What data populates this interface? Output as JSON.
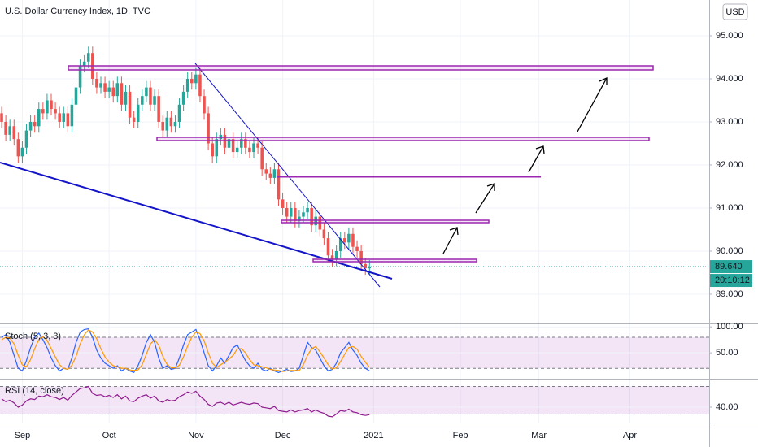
{
  "chart_data": [
    {
      "type": "candlestick",
      "title": "U.S. Dollar Currency Index, 1D, TVC",
      "currency": "USD",
      "up_color": "#26a69a",
      "down_color": "#ef5350",
      "open": [
        93.2,
        93.0,
        92.7,
        92.9,
        92.6,
        92.2,
        92.4,
        92.8,
        93.0,
        92.9,
        93.3,
        93.2,
        93.5,
        93.3,
        93.2,
        93.0,
        93.2,
        92.9,
        93.4,
        93.8,
        94.3,
        94.4,
        94.6,
        94.0,
        93.8,
        93.9,
        93.7,
        93.8,
        93.6,
        93.9,
        93.4,
        93.7,
        93.1,
        93.0,
        93.4,
        93.6,
        93.8,
        93.4,
        93.6,
        93.0,
        92.8,
        93.1,
        92.9,
        93.0,
        93.4,
        93.7,
        94.0,
        93.9,
        94.1,
        93.6,
        93.2,
        92.5,
        92.2,
        92.6,
        92.7,
        92.4,
        92.6,
        92.3,
        92.4,
        92.6,
        92.4,
        92.3,
        92.5,
        92.4,
        91.9,
        91.8,
        91.7,
        91.9,
        91.2,
        91.0,
        90.8,
        91.0,
        90.7,
        90.8,
        90.9,
        91.0,
        90.6,
        90.8,
        90.5,
        90.3,
        89.9,
        89.8,
        90.0,
        90.3,
        90.2,
        90.4,
        90.1,
        90.0,
        89.7,
        89.6
      ],
      "high": [
        93.35,
        93.15,
        93.05,
        93.05,
        92.75,
        92.55,
        92.95,
        93.15,
        93.15,
        93.45,
        93.45,
        93.65,
        93.65,
        93.45,
        93.35,
        93.35,
        93.35,
        93.55,
        93.95,
        94.45,
        94.55,
        94.75,
        94.75,
        94.15,
        94.05,
        94.05,
        93.95,
        93.95,
        94.05,
        94.05,
        93.85,
        93.85,
        93.25,
        93.55,
        93.75,
        93.95,
        93.95,
        93.75,
        93.75,
        93.15,
        93.25,
        93.25,
        93.15,
        93.55,
        93.85,
        94.15,
        94.15,
        94.25,
        94.25,
        93.75,
        93.35,
        92.65,
        92.75,
        92.85,
        92.85,
        92.75,
        92.75,
        92.55,
        92.75,
        92.75,
        92.55,
        92.65,
        92.65,
        92.55,
        92.05,
        91.95,
        92.05,
        92.05,
        91.35,
        91.15,
        91.15,
        91.15,
        90.95,
        91.05,
        91.15,
        91.15,
        90.95,
        90.95,
        90.65,
        90.45,
        90.05,
        90.15,
        90.45,
        90.45,
        90.55,
        90.55,
        90.25,
        90.15,
        89.85,
        89.79
      ],
      "low": [
        92.85,
        92.55,
        92.55,
        92.45,
        92.05,
        92.05,
        92.25,
        92.65,
        92.75,
        92.75,
        93.05,
        93.05,
        93.15,
        93.05,
        92.85,
        92.85,
        92.75,
        92.75,
        93.25,
        93.65,
        94.15,
        94.25,
        93.85,
        93.65,
        93.65,
        93.55,
        93.55,
        93.45,
        93.45,
        93.25,
        93.25,
        92.95,
        92.85,
        92.85,
        93.25,
        93.45,
        93.25,
        93.25,
        92.85,
        92.65,
        92.65,
        92.75,
        92.75,
        92.85,
        93.25,
        93.55,
        93.75,
        93.75,
        93.45,
        93.05,
        92.35,
        92.05,
        92.05,
        92.45,
        92.25,
        92.25,
        92.15,
        92.15,
        92.25,
        92.25,
        92.15,
        92.15,
        92.25,
        91.75,
        91.65,
        91.55,
        91.55,
        91.05,
        90.85,
        90.65,
        90.65,
        90.55,
        90.55,
        90.65,
        90.75,
        90.45,
        90.45,
        90.35,
        90.15,
        89.75,
        89.65,
        89.65,
        89.85,
        90.05,
        90.05,
        89.95,
        89.85,
        89.55,
        89.45,
        89.45
      ],
      "close": [
        93.0,
        92.7,
        92.9,
        92.6,
        92.2,
        92.4,
        92.8,
        93.0,
        92.9,
        93.3,
        93.2,
        93.5,
        93.3,
        93.2,
        93.0,
        93.2,
        92.9,
        93.4,
        93.8,
        94.3,
        94.4,
        94.6,
        94.0,
        93.8,
        93.9,
        93.7,
        93.8,
        93.6,
        93.9,
        93.4,
        93.7,
        93.1,
        93.0,
        93.4,
        93.6,
        93.8,
        93.4,
        93.6,
        93.0,
        92.8,
        93.1,
        92.9,
        93.0,
        93.4,
        93.7,
        94.0,
        93.9,
        94.1,
        93.6,
        93.2,
        92.5,
        92.2,
        92.6,
        92.7,
        92.4,
        92.6,
        92.3,
        92.4,
        92.6,
        92.4,
        92.3,
        92.5,
        92.4,
        91.9,
        91.8,
        91.7,
        91.9,
        91.2,
        91.0,
        90.8,
        91.0,
        90.7,
        90.8,
        90.9,
        91.0,
        90.6,
        90.8,
        90.5,
        90.3,
        89.9,
        89.8,
        90.0,
        90.3,
        90.2,
        90.4,
        90.1,
        90.0,
        89.7,
        89.6,
        89.64
      ],
      "last_price": {
        "value": 89.64,
        "label": "89.640"
      },
      "countdown": "20:10:12",
      "xlim": [
        -0.4,
        171.2
      ],
      "xticks": [
        {
          "value": 5,
          "label": "Sep"
        },
        {
          "value": 26,
          "label": "Oct"
        },
        {
          "value": 47,
          "label": "Nov"
        },
        {
          "value": 68,
          "label": "Dec"
        },
        {
          "value": 90,
          "label": "2021"
        },
        {
          "value": 111,
          "label": "Feb"
        },
        {
          "value": 130,
          "label": "Mar"
        },
        {
          "value": 152,
          "label": "Apr"
        }
      ],
      "ylim": [
        88.32,
        95.83
      ],
      "yticks": [
        {
          "value": 95,
          "label": "95.000"
        },
        {
          "value": 94,
          "label": "94.000"
        },
        {
          "value": 93,
          "label": "93.000"
        },
        {
          "value": 92,
          "label": "92.000"
        },
        {
          "value": 91,
          "label": "91.000"
        },
        {
          "value": 90,
          "label": "90.000"
        },
        {
          "value": 89,
          "label": "89.000"
        }
      ]
    },
    {
      "type": "line",
      "title": "Stoch (5, 3, 3)",
      "ylim": [
        0,
        105
      ],
      "bands": [
        20,
        80
      ],
      "band_color": "#9c27b0",
      "yticks": [
        {
          "value": 100,
          "label": "100.00"
        },
        {
          "value": 50,
          "label": "50.00"
        }
      ],
      "series": [
        {
          "color": "#2962ff",
          "values": [
            80,
            85,
            70,
            45,
            20,
            15,
            35,
            60,
            80,
            88,
            75,
            60,
            40,
            25,
            15,
            20,
            18,
            40,
            70,
            90,
            95,
            96,
            80,
            55,
            40,
            30,
            25,
            20,
            25,
            15,
            20,
            15,
            12,
            25,
            45,
            70,
            85,
            70,
            40,
            20,
            25,
            18,
            20,
            40,
            65,
            85,
            90,
            95,
            75,
            50,
            25,
            15,
            25,
            40,
            30,
            45,
            60,
            65,
            50,
            35,
            25,
            20,
            30,
            18,
            15,
            20,
            15,
            12,
            15,
            18,
            14,
            15,
            20,
            45,
            70,
            60,
            55,
            40,
            25,
            15,
            18,
            30,
            50,
            60,
            70,
            55,
            45,
            30,
            20,
            15
          ]
        },
        {
          "color": "#ff9800",
          "values": [
            75,
            80,
            78,
            67,
            45,
            27,
            23,
            37,
            58,
            76,
            81,
            74,
            58,
            42,
            27,
            20,
            18,
            26,
            43,
            67,
            85,
            94,
            90,
            77,
            58,
            42,
            32,
            25,
            23,
            20,
            20,
            17,
            16,
            17,
            27,
            47,
            67,
            75,
            65,
            43,
            28,
            21,
            21,
            26,
            42,
            63,
            80,
            90,
            87,
            73,
            50,
            30,
            22,
            27,
            32,
            38,
            45,
            57,
            58,
            50,
            37,
            27,
            25,
            23,
            21,
            18,
            17,
            16,
            14,
            15,
            16,
            16,
            16,
            27,
            45,
            58,
            62,
            52,
            40,
            27,
            19,
            21,
            33,
            47,
            60,
            62,
            57,
            43,
            32,
            22
          ]
        }
      ]
    },
    {
      "type": "line",
      "title": "RSI (14, close)",
      "ylim": [
        17.6,
        80
      ],
      "bands": [
        30,
        70
      ],
      "band_color": "#9c27b0",
      "yticks": [
        {
          "value": 40,
          "label": "40.00"
        }
      ],
      "series": [
        {
          "color": "#8e1c8e",
          "values": [
            52,
            48,
            50,
            46,
            40,
            43,
            49,
            52,
            51,
            56,
            55,
            58,
            55,
            54,
            51,
            54,
            50,
            57,
            62,
            67,
            68,
            70,
            60,
            57,
            58,
            55,
            57,
            54,
            58,
            52,
            56,
            49,
            48,
            53,
            56,
            58,
            53,
            56,
            49,
            47,
            51,
            49,
            50,
            55,
            58,
            62,
            60,
            63,
            56,
            51,
            44,
            41,
            46,
            47,
            44,
            47,
            43,
            45,
            47,
            45,
            44,
            46,
            45,
            40,
            39,
            38,
            41,
            35,
            34,
            33,
            36,
            33,
            35,
            36,
            38,
            33,
            36,
            33,
            31,
            27,
            26,
            30,
            35,
            34,
            37,
            33,
            32,
            29,
            28,
            29
          ]
        }
      ]
    }
  ]
}
